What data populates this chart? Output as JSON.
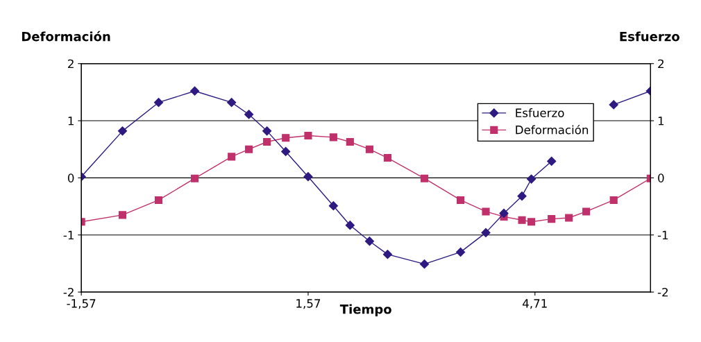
{
  "chart_data": {
    "type": "line",
    "xlabel": "Tiempo",
    "ylabel": "Deformación",
    "y2label": "Esfuerzo",
    "x": [
      -1.57,
      -1.0,
      -0.5,
      0.0,
      0.51,
      0.75,
      1.0,
      1.26,
      1.57,
      1.92,
      2.15,
      2.42,
      2.67,
      3.18,
      3.68,
      4.03,
      4.28,
      4.53,
      4.66,
      4.94,
      5.18,
      5.42,
      5.8,
      6.31
    ],
    "series": [
      {
        "name": "Esfuerzo",
        "color": "#2e1a80",
        "axis": "y2",
        "marker": "diamond",
        "values": [
          0.02,
          0.82,
          1.32,
          1.52,
          1.32,
          1.11,
          0.82,
          0.46,
          0.02,
          -0.49,
          -0.83,
          -1.11,
          -1.34,
          -1.51,
          -1.3,
          -0.96,
          -0.62,
          -0.32,
          -0.02,
          0.29,
          null,
          null,
          1.28,
          1.52
        ]
      },
      {
        "name": "Deformación",
        "color": "#c0306a",
        "marker": "square",
        "values": [
          -0.77,
          -0.65,
          -0.39,
          -0.01,
          0.37,
          0.5,
          0.63,
          0.7,
          0.74,
          0.71,
          0.63,
          0.5,
          0.35,
          -0.01,
          -0.39,
          -0.59,
          -0.68,
          -0.74,
          -0.77,
          -0.72,
          -0.7,
          -0.59,
          -0.39,
          -0.01
        ]
      }
    ],
    "xlim": [
      -1.57,
      6.31
    ],
    "xticks": [
      {
        "value": -1.57,
        "label": "-1,57"
      },
      {
        "value": 1.57,
        "label": "1,57"
      },
      {
        "value": 4.71,
        "label": "4,71"
      }
    ],
    "ylim": [
      -2,
      2
    ],
    "yticks": [
      -2,
      -1,
      0,
      1,
      2
    ],
    "y2lim": [
      -2,
      2
    ],
    "y2ticks": [
      -2,
      -1,
      0,
      1,
      2
    ],
    "grid": "y",
    "legend": "top right"
  }
}
